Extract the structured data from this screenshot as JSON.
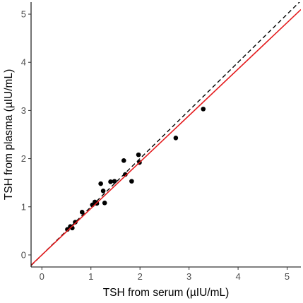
{
  "chart_data": {
    "type": "scatter",
    "xlabel": "TSH from serum (µIU/mL)",
    "ylabel": "TSH from plasma (µIU/mL)",
    "xlim": [
      -0.22,
      5.28
    ],
    "ylim": [
      -0.25,
      5.25
    ],
    "xticks": [
      0,
      1,
      2,
      3,
      4,
      5
    ],
    "yticks": [
      0,
      1,
      2,
      3,
      4,
      5
    ],
    "grid": false,
    "points": [
      {
        "x": 0.52,
        "y": 0.53
      },
      {
        "x": 0.58,
        "y": 0.59
      },
      {
        "x": 0.62,
        "y": 0.56
      },
      {
        "x": 0.68,
        "y": 0.68
      },
      {
        "x": 0.82,
        "y": 0.89
      },
      {
        "x": 1.03,
        "y": 1.04
      },
      {
        "x": 1.08,
        "y": 1.1
      },
      {
        "x": 1.12,
        "y": 1.07
      },
      {
        "x": 1.2,
        "y": 1.48
      },
      {
        "x": 1.25,
        "y": 1.33
      },
      {
        "x": 1.28,
        "y": 1.08
      },
      {
        "x": 1.4,
        "y": 1.52
      },
      {
        "x": 1.48,
        "y": 1.53
      },
      {
        "x": 1.67,
        "y": 1.96
      },
      {
        "x": 1.7,
        "y": 1.67
      },
      {
        "x": 1.83,
        "y": 1.53
      },
      {
        "x": 1.97,
        "y": 2.08
      },
      {
        "x": 1.99,
        "y": 1.92
      },
      {
        "x": 2.73,
        "y": 2.43
      },
      {
        "x": 3.29,
        "y": 3.03
      }
    ],
    "reference_line": {
      "slope": 1,
      "intercept": 0,
      "style": "dashed",
      "color": "#000000"
    },
    "fit_line": {
      "slope": 0.965,
      "intercept": 0.0,
      "style": "solid",
      "color": "#e41a1c"
    },
    "point_color": "#000000"
  }
}
